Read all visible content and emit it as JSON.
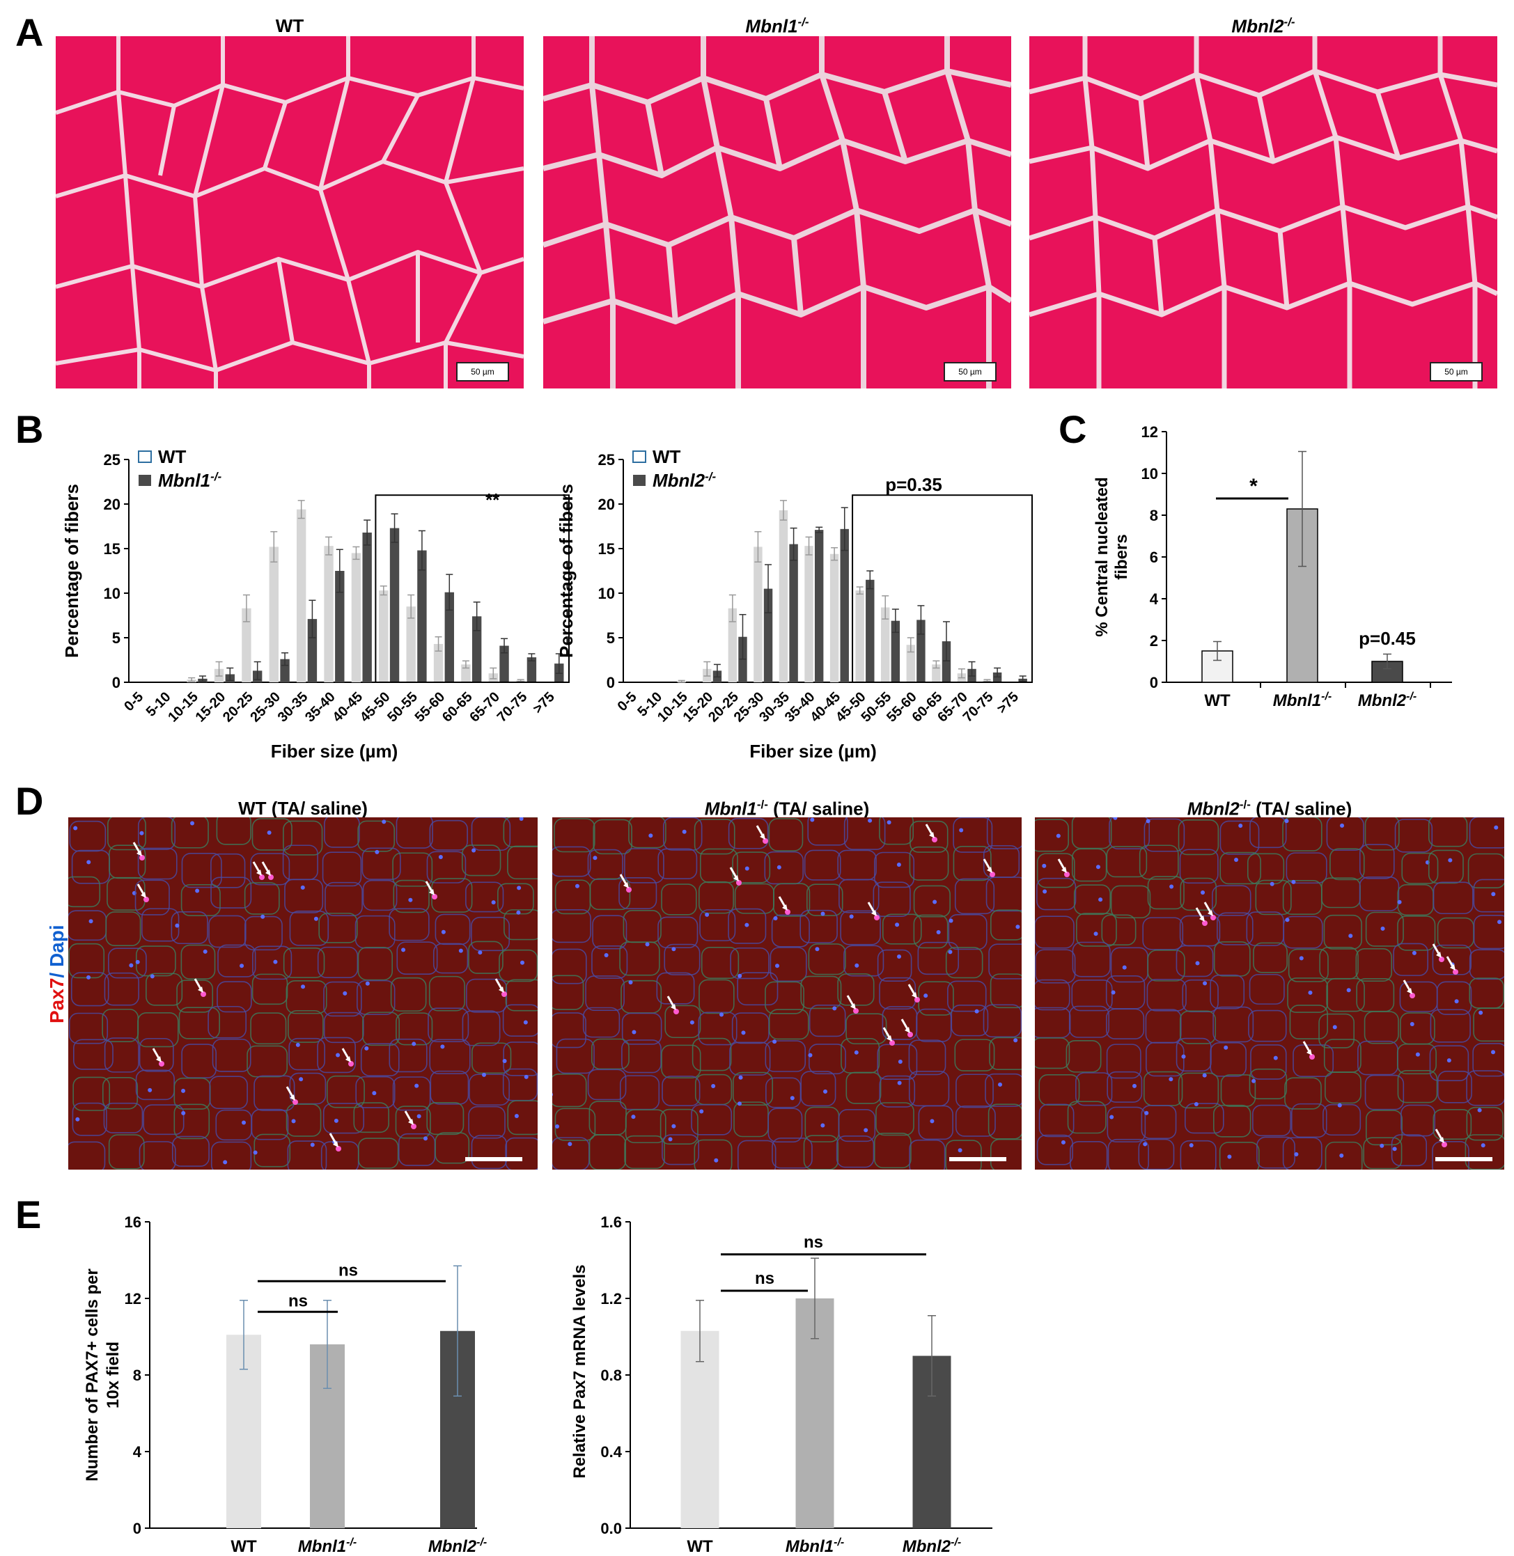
{
  "panels": {
    "a": {
      "letter": "A",
      "titles": [
        "WT",
        "Mbnl1",
        "Mbnl2"
      ],
      "title_sup": [
        "",
        "-/-",
        "-/-"
      ],
      "scale_label": "50 µm"
    },
    "b": {
      "letter": "B"
    },
    "c": {
      "letter": "C"
    },
    "d": {
      "letter": "D",
      "titles": [
        "WT",
        "Mbnl1",
        "Mbnl2"
      ],
      "title_sup": [
        "",
        "-/-",
        "-/-"
      ],
      "title_suffix": "(TA/ saline)",
      "side_label_red": "Pax7",
      "side_label_blue": "/ Dapi"
    },
    "e": {
      "letter": "E"
    }
  },
  "colors": {
    "he_stain": "#e8125a",
    "fluor_red": "#8a1a14",
    "wt_bar": "#d6d6d6",
    "ko1_bar": "#b0b0b0",
    "ko2_bar": "#4a4a4a",
    "pax7_label": "#e01010",
    "dapi_label": "#1060d0"
  },
  "chart_data": [
    {
      "id": "B1",
      "type": "bar",
      "xlabel": "Fiber size (µm)",
      "ylabel": "Percentage of fibers",
      "ylim": [
        0,
        25
      ],
      "yticks": [
        0,
        5,
        10,
        15,
        20,
        25
      ],
      "categories": [
        "0-5",
        "5-10",
        "10-15",
        "15-20",
        "20-25",
        "25-30",
        "30-35",
        "35-40",
        "40-45",
        "45-50",
        "50-55",
        "55-60",
        "60-65",
        "65-70",
        "70-75",
        ">75"
      ],
      "series": [
        {
          "name": "WT",
          "values": [
            0,
            0,
            0.3,
            1.5,
            8.3,
            15.2,
            19.4,
            15.3,
            14.5,
            10.3,
            8.5,
            4.3,
            2.0,
            1.0,
            0.2,
            0.0
          ],
          "errors": [
            0,
            0,
            0.2,
            0.8,
            1.5,
            1.7,
            1.0,
            1.0,
            0.7,
            0.5,
            1.3,
            0.8,
            0.4,
            0.6,
            0.1,
            0
          ]
        },
        {
          "name": "Mbnl1",
          "name_sup": "-/-",
          "values": [
            0,
            0,
            0.4,
            0.9,
            1.3,
            2.6,
            7.1,
            12.5,
            16.8,
            17.3,
            14.8,
            10.1,
            7.4,
            4.1,
            2.8,
            2.1
          ],
          "errors": [
            0,
            0,
            0.3,
            0.7,
            1.0,
            0.7,
            2.1,
            2.4,
            1.4,
            1.6,
            2.2,
            2.0,
            1.6,
            0.8,
            0.4,
            1.1
          ]
        }
      ],
      "annotation": "**",
      "legend_placement": "top-left"
    },
    {
      "id": "B2",
      "type": "bar",
      "xlabel": "Fiber size (µm)",
      "ylabel": "Percentage of fibers",
      "ylim": [
        0,
        25
      ],
      "yticks": [
        0,
        5,
        10,
        15,
        20,
        25
      ],
      "categories": [
        "0-5",
        "5-10",
        "10-15",
        "15-20",
        "20-25",
        "25-30",
        "30-35",
        "35-40",
        "40-45",
        "45-50",
        "50-55",
        "55-60",
        "60-65",
        "65-70",
        "70-75",
        ">75"
      ],
      "series": [
        {
          "name": "WT",
          "values": [
            0,
            0,
            0.1,
            1.5,
            8.3,
            15.2,
            19.3,
            15.3,
            14.4,
            10.3,
            8.4,
            4.2,
            2.0,
            1.0,
            0.2,
            0.0
          ],
          "errors": [
            0,
            0,
            0.1,
            0.8,
            1.5,
            1.7,
            1.1,
            1.0,
            0.7,
            0.4,
            1.3,
            0.8,
            0.4,
            0.5,
            0.1,
            0
          ]
        },
        {
          "name": "Mbnl2",
          "name_sup": "-/-",
          "values": [
            0,
            0,
            0,
            1.3,
            5.1,
            10.5,
            15.5,
            17.1,
            17.2,
            11.5,
            6.9,
            7.0,
            4.6,
            1.5,
            1.1,
            0.4
          ],
          "errors": [
            0,
            0,
            0,
            0.7,
            2.5,
            2.7,
            1.8,
            0.3,
            2.4,
            1.0,
            1.3,
            1.6,
            2.2,
            0.8,
            0.5,
            0.3
          ]
        }
      ],
      "annotation": "p=0.35",
      "legend_placement": "top-left"
    },
    {
      "id": "C",
      "type": "bar",
      "ylabel_line1": "% Central nucleated",
      "ylabel_line2": "fibers",
      "ylim": [
        0,
        12
      ],
      "yticks": [
        0,
        2,
        4,
        6,
        8,
        10,
        12
      ],
      "categories": [
        "WT",
        "Mbnl1",
        "Mbnl2"
      ],
      "category_sup": [
        "",
        "-/-",
        "-/-"
      ],
      "values": [
        1.5,
        8.3,
        1.0
      ],
      "errors": [
        0.45,
        2.75,
        0.35
      ],
      "annotations": [
        "*",
        "p=0.45"
      ]
    },
    {
      "id": "E1",
      "type": "bar",
      "ylabel_line1": "Number of PAX7+ cells per",
      "ylabel_line2": "10x field",
      "ylim": [
        0,
        16
      ],
      "yticks": [
        0,
        4,
        8,
        12,
        16
      ],
      "categories": [
        "WT",
        "Mbnl1",
        "Mbnl2"
      ],
      "category_sup": [
        "",
        "-/-",
        "-/-"
      ],
      "values": [
        10.1,
        9.6,
        10.3
      ],
      "errors": [
        1.8,
        2.3,
        3.4
      ],
      "annotations": [
        "ns",
        "ns"
      ]
    },
    {
      "id": "E2",
      "type": "bar",
      "ylabel": "Relative Pax7 mRNA levels",
      "ylim": [
        0,
        1.6
      ],
      "yticks": [
        "0.0",
        "0.4",
        "0.8",
        "1.2",
        "1.6"
      ],
      "categories": [
        "WT",
        "Mbnl1",
        "Mbnl2"
      ],
      "category_sup": [
        "",
        "-/-",
        "-/-"
      ],
      "values": [
        1.03,
        1.2,
        0.9
      ],
      "errors": [
        0.16,
        0.21,
        0.21
      ],
      "annotations": [
        "ns",
        "ns"
      ]
    }
  ]
}
